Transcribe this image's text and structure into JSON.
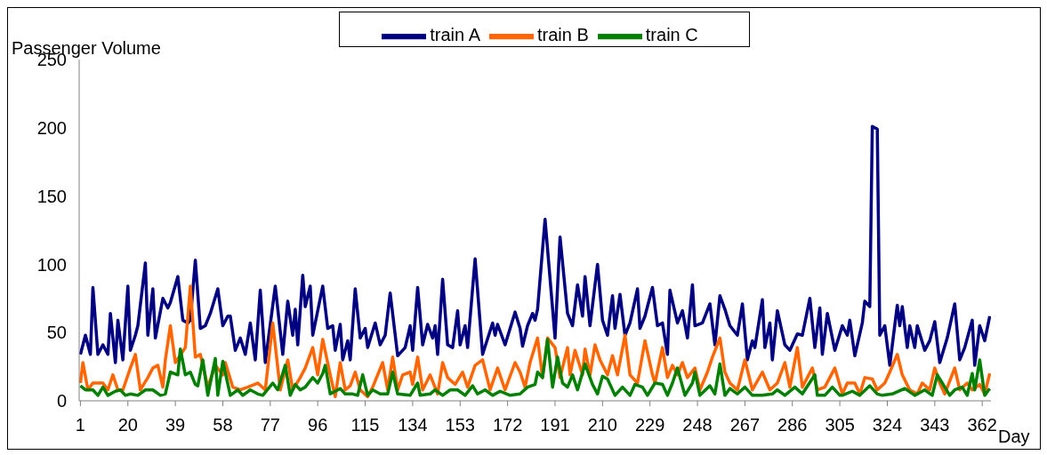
{
  "chart_data": {
    "type": "line",
    "ylabel": "Passenger Volume",
    "xlabel": "Day",
    "xlim": [
      0.5,
      365.5
    ],
    "xticks": [
      1,
      20,
      39,
      58,
      77,
      96,
      115,
      134,
      153,
      172,
      191,
      210,
      229,
      248,
      267,
      286,
      305,
      324,
      343,
      362
    ],
    "ylim": [
      0,
      250
    ],
    "yticks": [
      0,
      50,
      100,
      150,
      200,
      250
    ],
    "grid": false,
    "legend": "top",
    "marker": "none",
    "line_style": "solid",
    "series": [
      {
        "name": "train A",
        "color": "#000080",
        "x": [
          1,
          3,
          5,
          6,
          8,
          10,
          12,
          13,
          15,
          16,
          18,
          20,
          21,
          23,
          24,
          27,
          28,
          30,
          31,
          34,
          36,
          37,
          40,
          42,
          44,
          45,
          47,
          49,
          51,
          53,
          56,
          58,
          60,
          61,
          63,
          65,
          67,
          69,
          71,
          73,
          75,
          79,
          82,
          84,
          86,
          87,
          88,
          90,
          91,
          93,
          94,
          98,
          100,
          102,
          103,
          105,
          106,
          108,
          109,
          111,
          113,
          115,
          116,
          119,
          121,
          123,
          125,
          128,
          131,
          133,
          134,
          136,
          138,
          140,
          142,
          143,
          144,
          146,
          148,
          150,
          152,
          153,
          155,
          156,
          159,
          162,
          166,
          167,
          168,
          171,
          175,
          177,
          178,
          180,
          182,
          183,
          184,
          187,
          191,
          193,
          196,
          198,
          200,
          202,
          203,
          205,
          208,
          210,
          212,
          214,
          215,
          217,
          219,
          221,
          224,
          225,
          227,
          230,
          232,
          234,
          236,
          237,
          240,
          242,
          244,
          246,
          247,
          250,
          253,
          255,
          257,
          259,
          261,
          264,
          266,
          268,
          270,
          271,
          274,
          275,
          277,
          278,
          280,
          283,
          285,
          288,
          290,
          293,
          295,
          297,
          298,
          300,
          303,
          306,
          308,
          309,
          311,
          314,
          315,
          317,
          318,
          320,
          321,
          323,
          325,
          328,
          329,
          330,
          332,
          333,
          335,
          336,
          339,
          341,
          343,
          345,
          348,
          351,
          353,
          355,
          358,
          359,
          361,
          363,
          365
        ],
        "values": [
          34,
          48,
          34,
          83,
          34,
          41,
          34,
          64,
          28,
          59,
          30,
          84,
          37,
          48,
          55,
          101,
          48,
          82,
          46,
          75,
          68,
          72,
          91,
          59,
          57,
          59,
          103,
          53,
          55,
          64,
          82,
          55,
          62,
          62,
          37,
          46,
          34,
          57,
          30,
          81,
          28,
          84,
          34,
          73,
          48,
          67,
          41,
          92,
          69,
          84,
          48,
          84,
          53,
          55,
          37,
          56,
          30,
          44,
          30,
          82,
          46,
          53,
          39,
          57,
          41,
          48,
          79,
          33,
          39,
          55,
          37,
          83,
          41,
          56,
          46,
          55,
          34,
          89,
          41,
          39,
          66,
          41,
          55,
          39,
          104,
          34,
          57,
          48,
          56,
          41,
          65,
          53,
          40,
          55,
          64,
          59,
          67,
          133,
          46,
          120,
          64,
          55,
          85,
          62,
          91,
          55,
          100,
          59,
          48,
          77,
          53,
          78,
          48,
          57,
          82,
          53,
          62,
          83,
          55,
          57,
          34,
          81,
          57,
          66,
          46,
          85,
          55,
          57,
          71,
          41,
          77,
          67,
          55,
          48,
          71,
          30,
          44,
          39,
          74,
          39,
          57,
          30,
          66,
          41,
          37,
          49,
          48,
          75,
          39,
          68,
          34,
          64,
          37,
          55,
          48,
          59,
          33,
          57,
          73,
          69,
          201,
          199,
          48,
          55,
          26,
          70,
          55,
          69,
          39,
          55,
          39,
          55,
          37,
          44,
          58,
          28,
          46,
          71,
          30,
          39,
          59,
          26,
          55,
          44,
          62
        ]
      },
      {
        "name": "train B",
        "color": "#ff6600",
        "x": [
          1,
          2,
          4,
          6,
          8,
          10,
          12,
          14,
          16,
          18,
          21,
          23,
          25,
          28,
          30,
          32,
          34,
          35,
          37,
          39,
          43,
          45,
          47,
          49,
          52,
          55,
          58,
          59,
          62,
          65,
          68,
          72,
          75,
          78,
          81,
          84,
          86,
          89,
          91,
          94,
          96,
          98,
          101,
          103,
          105,
          107,
          109,
          111,
          113,
          116,
          118,
          122,
          124,
          126,
          128,
          130,
          133,
          134,
          136,
          138,
          141,
          144,
          146,
          148,
          151,
          154,
          156,
          159,
          162,
          165,
          168,
          171,
          175,
          177,
          179,
          181,
          184,
          186,
          188,
          191,
          193,
          196,
          197,
          199,
          202,
          203,
          205,
          207,
          209,
          212,
          214,
          216,
          219,
          221,
          224,
          227,
          230,
          231,
          234,
          236,
          238,
          240,
          242,
          244,
          247,
          249,
          252,
          254,
          257,
          259,
          261,
          264,
          267,
          270,
          274,
          277,
          280,
          283,
          285,
          288,
          290,
          294,
          296,
          299,
          303,
          306,
          308,
          311,
          313,
          315,
          318,
          320,
          323,
          325,
          328,
          330,
          333,
          336,
          338,
          341,
          343,
          345,
          347,
          351,
          353,
          356,
          358,
          361,
          363,
          365
        ],
        "values": [
          13,
          28,
          8,
          13,
          13,
          13,
          8,
          19,
          8,
          8,
          24,
          34,
          8,
          17,
          24,
          26,
          10,
          30,
          55,
          28,
          39,
          84,
          32,
          34,
          10,
          26,
          19,
          28,
          10,
          8,
          10,
          13,
          8,
          57,
          8,
          30,
          8,
          17,
          24,
          39,
          19,
          45,
          19,
          3,
          28,
          8,
          11,
          21,
          8,
          3,
          10,
          28,
          8,
          32,
          8,
          19,
          21,
          12,
          32,
          8,
          19,
          5,
          28,
          17,
          12,
          21,
          10,
          26,
          30,
          8,
          24,
          8,
          28,
          21,
          10,
          28,
          46,
          17,
          46,
          39,
          17,
          39,
          19,
          37,
          19,
          38,
          19,
          41,
          30,
          19,
          33,
          19,
          48,
          19,
          13,
          44,
          19,
          13,
          39,
          17,
          26,
          19,
          28,
          17,
          24,
          8,
          21,
          32,
          46,
          21,
          13,
          8,
          30,
          8,
          21,
          8,
          13,
          28,
          10,
          39,
          10,
          24,
          8,
          10,
          24,
          5,
          13,
          13,
          5,
          17,
          16,
          8,
          13,
          21,
          34,
          19,
          8,
          5,
          13,
          8,
          24,
          13,
          5,
          24,
          8,
          13,
          8,
          12,
          5,
          20
        ]
      },
      {
        "name": "train C",
        "color": "#008000",
        "x": [
          1,
          3,
          6,
          8,
          10,
          12,
          15,
          17,
          19,
          21,
          24,
          27,
          30,
          33,
          35,
          37,
          40,
          41,
          43,
          45,
          47,
          48,
          50,
          52,
          55,
          56,
          58,
          61,
          64,
          66,
          69,
          72,
          74,
          78,
          80,
          83,
          85,
          87,
          89,
          91,
          94,
          96,
          98,
          99,
          101,
          105,
          107,
          110,
          112,
          114,
          116,
          118,
          121,
          124,
          126,
          128,
          133,
          136,
          137,
          141,
          143,
          146,
          149,
          152,
          155,
          158,
          160,
          163,
          166,
          169,
          173,
          177,
          180,
          183,
          184,
          186,
          188,
          190,
          192,
          194,
          196,
          198,
          200,
          203,
          206,
          208,
          210,
          212,
          215,
          218,
          221,
          223,
          226,
          228,
          231,
          234,
          236,
          238,
          240,
          243,
          246,
          247,
          249,
          253,
          255,
          257,
          259,
          261,
          264,
          267,
          270,
          274,
          278,
          280,
          283,
          287,
          290,
          295,
          296,
          299,
          302,
          305,
          306,
          310,
          313,
          317,
          320,
          322,
          326,
          331,
          335,
          339,
          342,
          344,
          346,
          349,
          351,
          354,
          356,
          358,
          359,
          361,
          363,
          365
        ],
        "values": [
          11,
          8,
          8,
          4,
          10,
          4,
          7,
          8,
          4,
          5,
          4,
          8,
          8,
          4,
          5,
          21,
          19,
          38,
          19,
          21,
          12,
          11,
          30,
          4,
          31,
          4,
          29,
          4,
          8,
          4,
          8,
          5,
          4,
          13,
          8,
          26,
          4,
          12,
          8,
          10,
          17,
          13,
          20,
          26,
          5,
          9,
          5,
          5,
          4,
          19,
          4,
          8,
          5,
          5,
          21,
          5,
          4,
          13,
          4,
          5,
          8,
          4,
          8,
          8,
          4,
          11,
          5,
          8,
          4,
          7,
          4,
          5,
          10,
          12,
          21,
          17,
          45,
          10,
          32,
          13,
          10,
          19,
          8,
          27,
          12,
          5,
          18,
          16,
          4,
          10,
          4,
          12,
          10,
          4,
          13,
          12,
          4,
          13,
          24,
          4,
          13,
          21,
          4,
          11,
          5,
          27,
          4,
          9,
          5,
          10,
          4,
          4,
          5,
          8,
          4,
          10,
          5,
          19,
          4,
          4,
          10,
          4,
          4,
          7,
          4,
          11,
          5,
          4,
          5,
          9,
          4,
          8,
          4,
          19,
          13,
          4,
          8,
          10,
          4,
          20,
          8,
          30,
          4,
          9
        ]
      }
    ]
  }
}
